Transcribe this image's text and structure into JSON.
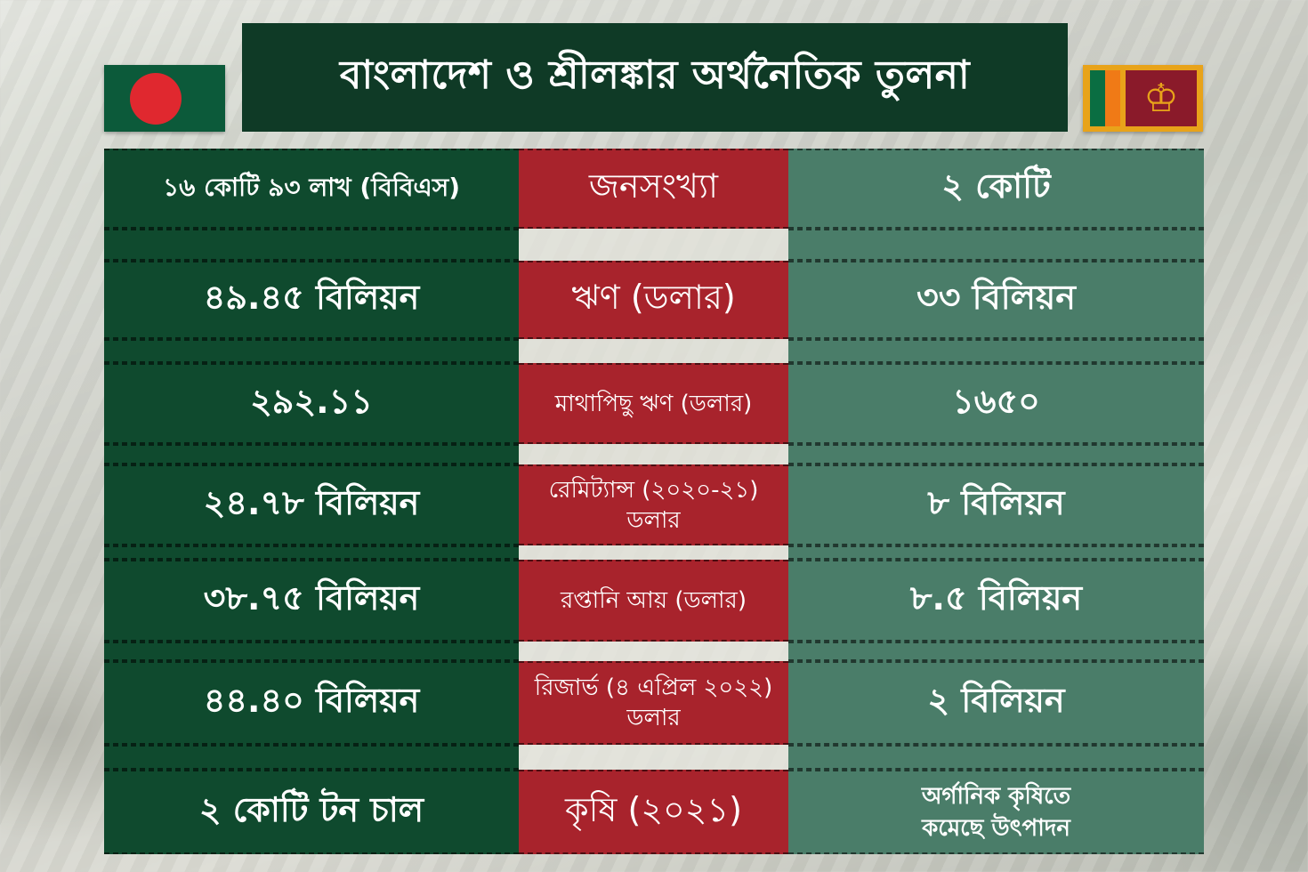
{
  "title": "বাংলাদেশ ও শ্রীলঙ্কার অর্থনৈতিক তুলনা",
  "flags": {
    "left": "bangladesh-flag",
    "right": "sri-lanka-flag"
  },
  "rows": [
    {
      "left": "১৬ কোটি ৯৩ লাখ (বিবিএস)",
      "label": "জনসংখ্যা",
      "right": "২ কোটি"
    },
    {
      "left": "৪৯.৪৫ বিলিয়ন",
      "label": "ঋণ (ডলার)",
      "right": "৩৩ বিলিয়ন"
    },
    {
      "left": "২৯২.১১",
      "label": "মাথাপিছু ঋণ (ডলার)",
      "right": "১৬৫০"
    },
    {
      "left": "২৪.৭৮ বিলিয়ন",
      "label_line1": "রেমিট্যান্স (২০২০-২১)",
      "label_line2": "ডলার",
      "right": "৮ বিলিয়ন"
    },
    {
      "left": "৩৮.৭৫ বিলিয়ন",
      "label": "রপ্তানি আয় (ডলার)",
      "right": "৮.৫ বিলিয়ন"
    },
    {
      "left": "৪৪.৪০ বিলিয়ন",
      "label_line1": "রিজার্ভ (৪ এপ্রিল ২০২২)",
      "label_line2": "ডলার",
      "right": "২ বিলিয়ন"
    },
    {
      "left": "২ কোটি টন চাল",
      "label": "কৃষি (২০২১)",
      "right_line1": "অর্গানিক কৃষিতে",
      "right_line2": "কমেছে উৎপাদন"
    }
  ],
  "colors": {
    "title_bg": "#0f3a26",
    "left_col": "#0f4a2e",
    "mid_col": "#a8232c",
    "right_col": "#4a7d69"
  }
}
